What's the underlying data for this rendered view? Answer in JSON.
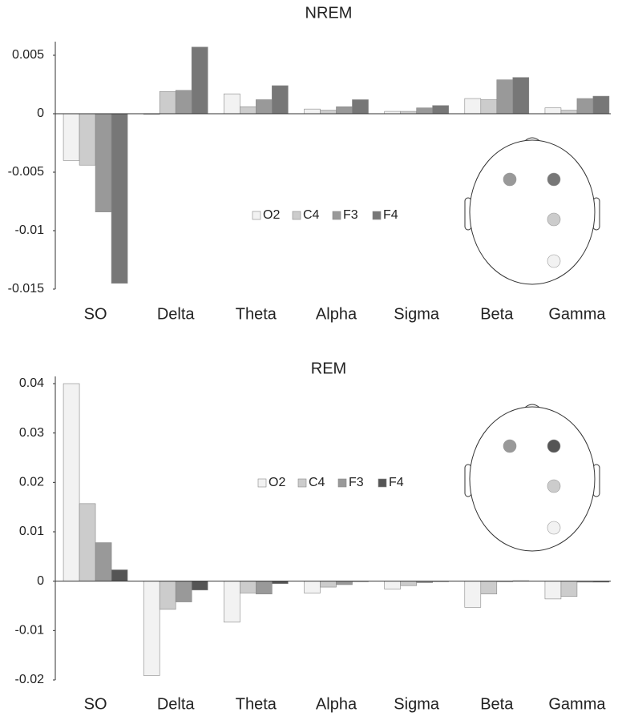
{
  "chart_data": [
    {
      "type": "bar",
      "title": "NREM",
      "categories": [
        "SO",
        "Delta",
        "Theta",
        "Alpha",
        "Sigma",
        "Beta",
        "Gamma"
      ],
      "series": [
        {
          "name": "O2",
          "color": "#f2f2f2",
          "values": [
            -0.004,
            -5e-05,
            0.0017,
            0.0004,
            0.0002,
            0.0013,
            0.0005
          ]
        },
        {
          "name": "C4",
          "color": "#cccccc",
          "values": [
            -0.0044,
            0.0019,
            0.0006,
            0.0003,
            0.0002,
            0.0012,
            0.0003
          ]
        },
        {
          "name": "F3",
          "color": "#999999",
          "values": [
            -0.0084,
            0.002,
            0.0012,
            0.0006,
            0.0005,
            0.0029,
            0.0013
          ]
        },
        {
          "name": "F4",
          "color": "#777777",
          "values": [
            -0.0145,
            0.0057,
            0.0024,
            0.0012,
            0.0007,
            0.0031,
            0.0015
          ]
        }
      ],
      "ylim": [
        -0.015,
        0.006
      ],
      "yticks": [
        -0.015,
        -0.01,
        -0.005,
        0,
        0.005
      ]
    },
    {
      "type": "bar",
      "title": "REM",
      "categories": [
        "SO",
        "Delta",
        "Theta",
        "Alpha",
        "Sigma",
        "Beta",
        "Gamma"
      ],
      "series": [
        {
          "name": "O2",
          "color": "#f2f2f2",
          "values": [
            0.04,
            -0.0191,
            -0.0083,
            -0.0024,
            -0.0016,
            -0.0053,
            -0.0036
          ]
        },
        {
          "name": "C4",
          "color": "#cccccc",
          "values": [
            0.0157,
            -0.0057,
            -0.0024,
            -0.0012,
            -0.0009,
            -0.0026,
            -0.0031
          ]
        },
        {
          "name": "F3",
          "color": "#999999",
          "values": [
            0.0078,
            -0.0042,
            -0.0026,
            -0.0007,
            -0.0003,
            -0.0001,
            -0.0002
          ]
        },
        {
          "name": "F4",
          "color": "#555555",
          "values": [
            0.0023,
            -0.0018,
            -0.0005,
            -0.0001,
            -0.0001,
            0.0001,
            -0.0002
          ]
        }
      ],
      "ylim": [
        -0.02,
        0.04
      ],
      "yticks": [
        -0.02,
        -0.01,
        0,
        0.01,
        0.02,
        0.03,
        0.04
      ]
    }
  ]
}
